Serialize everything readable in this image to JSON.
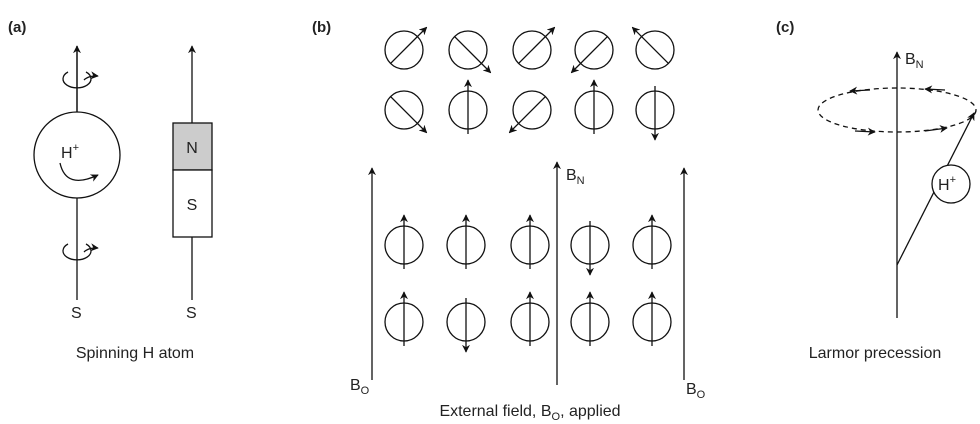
{
  "panel_a": {
    "label": "(a)",
    "atom": {
      "symbol": "H",
      "charge": "+"
    },
    "magnet": {
      "north": "N",
      "south": "S"
    },
    "south_labels": [
      "S",
      "S"
    ],
    "caption": "Spinning H atom"
  },
  "panel_b": {
    "label": "(b)",
    "field_label": {
      "main": "B",
      "sub": "N"
    },
    "external_labels": [
      {
        "main": "B",
        "sub": "O"
      },
      {
        "main": "B",
        "sub": "O"
      }
    ],
    "caption": {
      "before": "External field, B",
      "sub": "O",
      "after": ", applied"
    }
  },
  "panel_c": {
    "label": "(c)",
    "field_label": {
      "main": "B",
      "sub": "N"
    },
    "atom": {
      "symbol": "H",
      "charge": "+"
    },
    "caption": "Larmor precession"
  }
}
